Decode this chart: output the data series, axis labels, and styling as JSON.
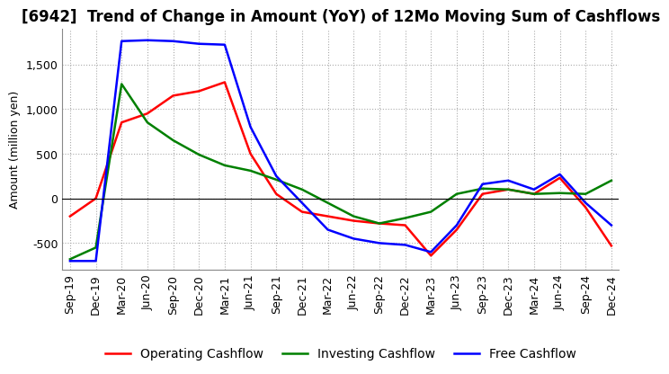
{
  "title": "[6942]  Trend of Change in Amount (YoY) of 12Mo Moving Sum of Cashflows",
  "ylabel": "Amount (million yen)",
  "x_labels": [
    "Sep-19",
    "Dec-19",
    "Mar-20",
    "Jun-20",
    "Sep-20",
    "Dec-20",
    "Mar-21",
    "Jun-21",
    "Sep-21",
    "Dec-21",
    "Mar-22",
    "Jun-22",
    "Sep-22",
    "Dec-22",
    "Mar-23",
    "Jun-23",
    "Sep-23",
    "Dec-23",
    "Mar-24",
    "Jun-24",
    "Sep-24",
    "Dec-24"
  ],
  "operating": [
    -200,
    0,
    850,
    950,
    1150,
    1200,
    1300,
    500,
    50,
    -150,
    -200,
    -250,
    -280,
    -300,
    -640,
    -350,
    50,
    100,
    50,
    230,
    -100,
    -530
  ],
  "investing": [
    -680,
    -550,
    1280,
    850,
    650,
    490,
    370,
    310,
    210,
    100,
    -50,
    -200,
    -280,
    -220,
    -150,
    50,
    110,
    100,
    50,
    60,
    50,
    200
  ],
  "free": [
    -700,
    -700,
    1760,
    1770,
    1760,
    1730,
    1720,
    800,
    250,
    -50,
    -350,
    -450,
    -500,
    -520,
    -600,
    -300,
    160,
    200,
    100,
    270,
    -50,
    -300
  ],
  "ylim": [
    -800,
    1900
  ],
  "yticks": [
    -500,
    0,
    500,
    1000,
    1500
  ],
  "operating_color": "#ff0000",
  "investing_color": "#008000",
  "free_color": "#0000ff",
  "background_color": "#ffffff",
  "grid_color": "#aaaaaa",
  "title_fontsize": 12,
  "axis_fontsize": 9,
  "legend_fontsize": 10
}
